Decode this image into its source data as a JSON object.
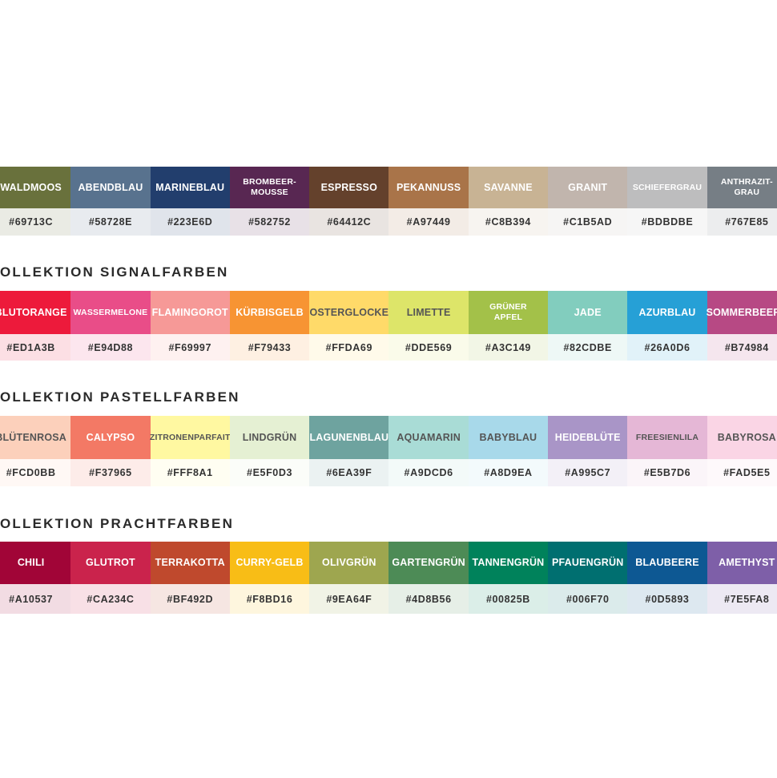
{
  "sections": [
    {
      "heading": "",
      "swatches": [
        {
          "name": "WALDMOOS",
          "hex": "#69713C"
        },
        {
          "name": "ABENDBLAU",
          "hex": "#58728E"
        },
        {
          "name": "MARINEBLAU",
          "hex": "#223E6D"
        },
        {
          "name": "BROMBEER-\nMOUSSE",
          "hex": "#582752"
        },
        {
          "name": "ESPRESSO",
          "hex": "#64412C"
        },
        {
          "name": "PEKANNUSS",
          "hex": "#A97449"
        },
        {
          "name": "SAVANNE",
          "hex": "#C8B394"
        },
        {
          "name": "GRANIT",
          "hex": "#C1B5AD"
        },
        {
          "name": "SCHIEFERGRAU",
          "hex": "#BDBDBE"
        },
        {
          "name": "ANTHRAZIT-\nGRAU",
          "hex": "#767E85"
        }
      ]
    },
    {
      "heading": "OLLEKTION SIGNALFARBEN",
      "swatches": [
        {
          "name": "BLUTORANGE",
          "hex": "#ED1A3B"
        },
        {
          "name": "WASSERMELONE",
          "hex": "#E94D88"
        },
        {
          "name": "FLAMINGOROT",
          "hex": "#F69997"
        },
        {
          "name": "KÜRBISGELB",
          "hex": "#F79433"
        },
        {
          "name": "OSTERGLOCKE",
          "hex": "#FFDA69"
        },
        {
          "name": "LIMETTE",
          "hex": "#DDE569"
        },
        {
          "name": "GRÜNER\nAPFEL",
          "hex": "#A3C149"
        },
        {
          "name": "JADE",
          "hex": "#82CDBE"
        },
        {
          "name": "AZURBLAU",
          "hex": "#26A0D6"
        },
        {
          "name": "SOMMERBEERE",
          "hex": "#B74984"
        }
      ]
    },
    {
      "heading": "OLLEKTION PASTELLFARBEN",
      "swatches": [
        {
          "name": "BLÜTENROSA",
          "hex": "#FCD0BB"
        },
        {
          "name": "CALYPSO",
          "hex": "#F37965"
        },
        {
          "name": "ZITRONENPARFAIT",
          "hex": "#FFF8A1"
        },
        {
          "name": "LINDGRÜN",
          "hex": "#E5F0D3"
        },
        {
          "name": "LAGUNENBLAU",
          "hex": "#6EA39F"
        },
        {
          "name": "AQUAMARIN",
          "hex": "#A9DCD6"
        },
        {
          "name": "BABYBLAU",
          "hex": "#A8D9EA"
        },
        {
          "name": "HEIDEBLÜTE",
          "hex": "#A995C7"
        },
        {
          "name": "FREESIENLILA",
          "hex": "#E5B7D6"
        },
        {
          "name": "BABYROSA",
          "hex": "#FAD5E5"
        }
      ]
    },
    {
      "heading": "OLLEKTION PRACHTFARBEN",
      "swatches": [
        {
          "name": "CHILI",
          "hex": "#A10537"
        },
        {
          "name": "GLUTROT",
          "hex": "#CA234C"
        },
        {
          "name": "TERRAKOTTA",
          "hex": "#BF492D"
        },
        {
          "name": "CURRY-GELB",
          "hex": "#F8BD16"
        },
        {
          "name": "OLIVGRÜN",
          "hex": "#9EA64F"
        },
        {
          "name": "GARTENGRÜN",
          "hex": "#4D8B56"
        },
        {
          "name": "TANNENGRÜN",
          "hex": "#00825B"
        },
        {
          "name": "PFAUENGRÜN",
          "hex": "#006F70"
        },
        {
          "name": "BLAUBEERE",
          "hex": "#0D5893"
        },
        {
          "name": "AMETHYST",
          "hex": "#7E5FA8"
        }
      ]
    }
  ]
}
